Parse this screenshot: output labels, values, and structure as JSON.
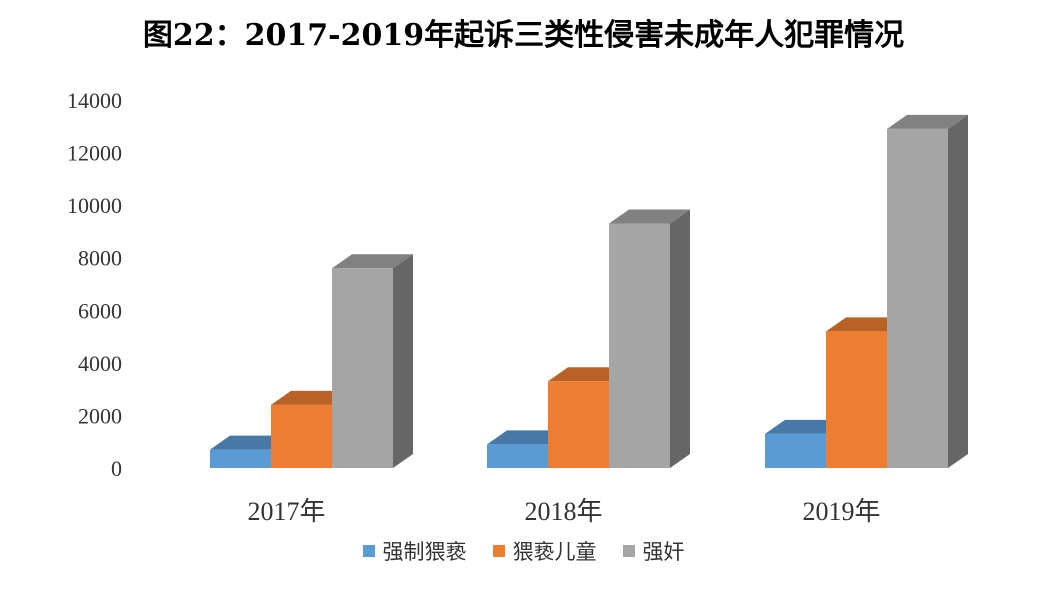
{
  "chart_data": {
    "type": "bar",
    "title": "图22：2017-2019年起诉三类性侵害未成年人犯罪情况",
    "categories": [
      "2017年",
      "2018年",
      "2019年"
    ],
    "series": [
      {
        "name": "强制猥亵",
        "color": "#5B9BD5",
        "values": [
          700,
          900,
          1300
        ]
      },
      {
        "name": "猥亵儿童",
        "color": "#ED7D31",
        "values": [
          2400,
          3300,
          5200
        ]
      },
      {
        "name": "强奸",
        "color": "#A5A5A5",
        "values": [
          7600,
          9300,
          12900
        ]
      }
    ],
    "ylim": [
      0,
      14000
    ],
    "yticks": [
      0,
      2000,
      4000,
      6000,
      8000,
      10000,
      12000,
      14000
    ],
    "legend_position": "bottom",
    "grid": false
  }
}
